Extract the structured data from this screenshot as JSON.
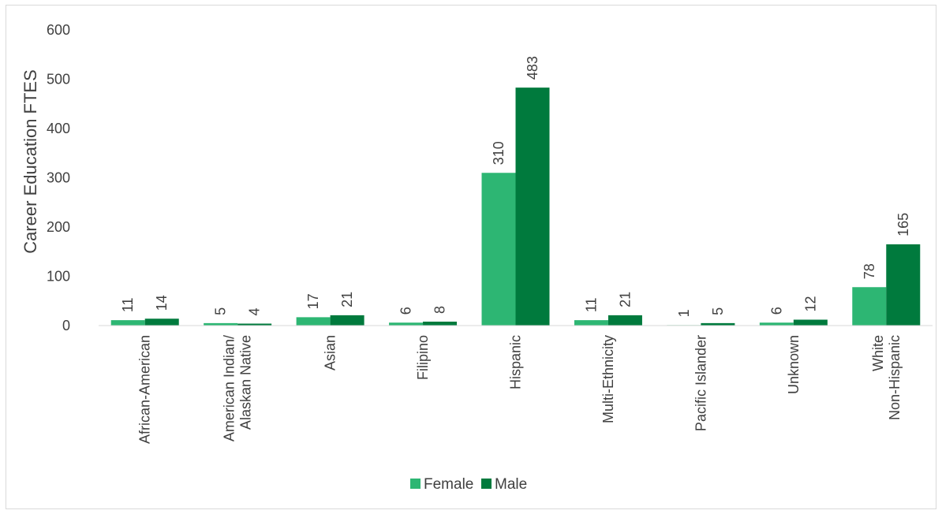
{
  "chart_data": {
    "type": "bar",
    "title": "",
    "xlabel": "",
    "ylabel": "Career Education FTES",
    "ylim": [
      0,
      600
    ],
    "yticks": [
      0,
      100,
      200,
      300,
      400,
      500,
      600
    ],
    "grid": false,
    "legend_position": "bottom",
    "categories": [
      [
        "African-American"
      ],
      [
        "American Indian/",
        "Alaskan Native"
      ],
      [
        "Asian"
      ],
      [
        "Filipino"
      ],
      [
        "Hispanic"
      ],
      [
        "Multi-Ethnicity"
      ],
      [
        "Pacific Islander"
      ],
      [
        "Unknown"
      ],
      [
        "White",
        "Non-Hispanic"
      ]
    ],
    "series": [
      {
        "name": "Female",
        "color": "#2db673",
        "values": [
          11,
          5,
          17,
          6,
          310,
          11,
          1,
          6,
          78
        ]
      },
      {
        "name": "Male",
        "color": "#007a3d",
        "values": [
          14,
          4,
          21,
          8,
          483,
          21,
          5,
          12,
          165
        ]
      }
    ]
  }
}
